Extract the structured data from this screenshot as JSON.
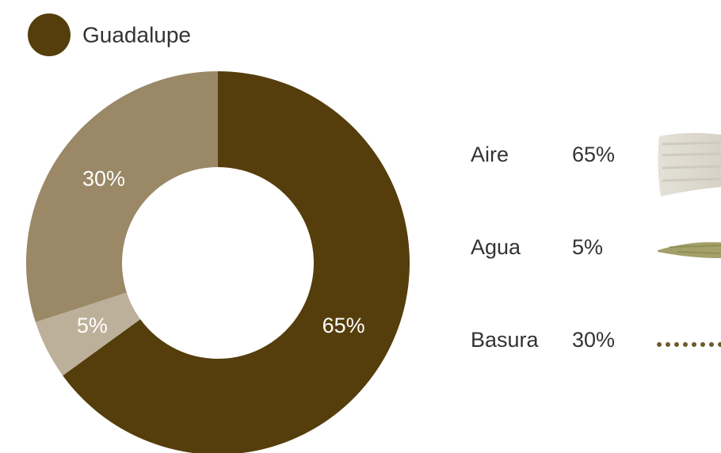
{
  "chart_data": {
    "type": "pie",
    "categories": [
      "Aire",
      "Agua",
      "Basura"
    ],
    "series": [
      {
        "name": "Guadalupe",
        "color": "#553e0c",
        "values": [
          65,
          5,
          30
        ],
        "value_labels": [
          "65%",
          "5%",
          "30%"
        ],
        "colors": [
          "#553e0c",
          "#bdb09a",
          "#9a8866"
        ]
      }
    ]
  }
}
